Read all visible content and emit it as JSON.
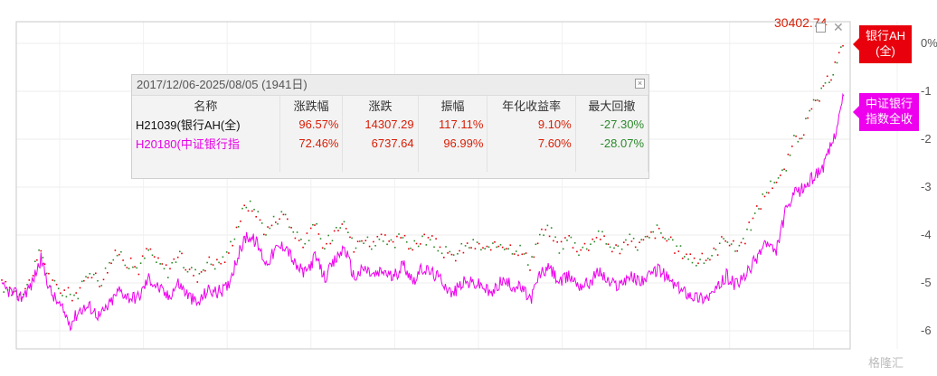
{
  "chart_data": {
    "type": "line",
    "date_range": "2017/12/06-2025/08/05 (1941日)",
    "peak_value_label": "30402.74",
    "y_axis_ticks": [
      "0%",
      "-1",
      "-2",
      "-3",
      "-4",
      "-5",
      "-6"
    ],
    "series": [
      {
        "name": "H21039(银行AH(全)",
        "tag": [
          "银行AH",
          "(全)"
        ],
        "color": "#e8000c",
        "style": "dotted-red-green",
        "values": [
          -5.05,
          -5.15,
          -5.2,
          -4.95,
          -4.3,
          -5.0,
          -5.15,
          -5.25,
          -5.2,
          -4.7,
          -5.0,
          -4.6,
          -4.35,
          -4.6,
          -4.7,
          -4.3,
          -4.6,
          -4.75,
          -4.4,
          -4.7,
          -4.85,
          -4.55,
          -4.6,
          -4.45,
          -3.85,
          -3.35,
          -3.5,
          -3.95,
          -3.65,
          -3.55,
          -4.05,
          -4.15,
          -3.8,
          -4.3,
          -3.9,
          -3.6,
          -4.3,
          -4.05,
          -4.2,
          -4.1,
          -4.25,
          -3.95,
          -4.3,
          -4.05,
          -4.15,
          -4.3,
          -4.5,
          -4.3,
          -4.2,
          -4.25,
          -4.35,
          -4.15,
          -4.25,
          -4.3,
          -4.6,
          -4.0,
          -3.9,
          -4.25,
          -4.05,
          -4.3,
          -4.2,
          -3.95,
          -4.2,
          -4.3,
          -4.1,
          -4.2,
          -4.1,
          -3.9,
          -4.1,
          -4.3,
          -4.4,
          -4.55,
          -4.5,
          -4.35,
          -4.0,
          -4.3,
          -4.05,
          -3.6,
          -3.15,
          -2.85,
          -2.7,
          -2.05,
          -1.8,
          -1.3,
          -1.0,
          -0.55,
          -0.05
        ]
      },
      {
        "name": "H20180(中证银行指",
        "tag": [
          "中证银行",
          "指数全收"
        ],
        "color": "#ee00ee",
        "style": "solid",
        "values": [
          -5.1,
          -5.2,
          -5.3,
          -5.05,
          -4.5,
          -5.2,
          -5.5,
          -5.85,
          -5.55,
          -5.5,
          -5.7,
          -5.45,
          -5.15,
          -5.3,
          -5.3,
          -4.9,
          -5.1,
          -5.3,
          -5.0,
          -5.25,
          -5.45,
          -5.15,
          -5.2,
          -5.1,
          -4.5,
          -4.0,
          -4.15,
          -4.6,
          -4.3,
          -4.2,
          -4.65,
          -4.8,
          -4.45,
          -4.9,
          -4.55,
          -4.25,
          -4.9,
          -4.7,
          -4.85,
          -4.75,
          -4.9,
          -4.6,
          -4.95,
          -4.7,
          -4.8,
          -4.95,
          -5.25,
          -5.0,
          -5.0,
          -5.05,
          -5.25,
          -4.95,
          -5.05,
          -5.1,
          -5.35,
          -4.8,
          -4.7,
          -5.0,
          -4.85,
          -5.05,
          -5.0,
          -4.75,
          -5.0,
          -5.05,
          -4.85,
          -4.95,
          -4.9,
          -4.7,
          -4.9,
          -5.1,
          -5.2,
          -5.3,
          -5.3,
          -5.15,
          -4.85,
          -5.05,
          -4.85,
          -4.5,
          -4.15,
          -4.4,
          -3.55,
          -3.15,
          -3.0,
          -2.75,
          -2.55,
          -1.95,
          -1.1
        ]
      }
    ]
  },
  "stats_panel": {
    "headers": [
      "名称",
      "涨跌幅",
      "涨跌",
      "振幅",
      "年化收益率",
      "最大回撤"
    ],
    "rows": [
      [
        "H21039(银行AH(全)",
        "96.57%",
        "14307.29",
        "117.11%",
        "9.10%",
        "-27.30%"
      ],
      [
        "H20180(中证银行指",
        "72.46%",
        "6737.64",
        "96.99%",
        "7.60%",
        "-28.07%"
      ]
    ]
  },
  "watermark": "格隆汇"
}
